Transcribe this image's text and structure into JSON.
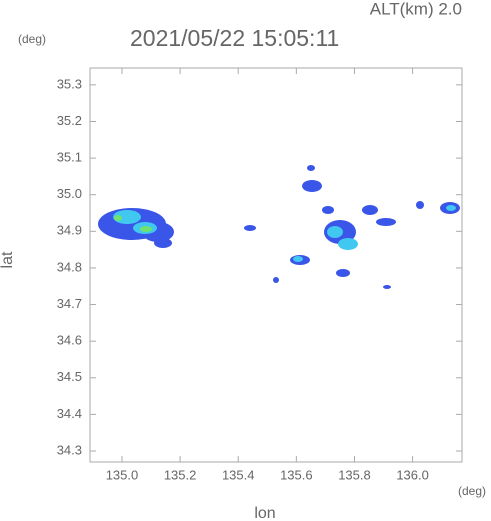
{
  "chart_data": {
    "type": "map",
    "title": "2021/05/22 15:05:11",
    "subtitle": "ALT(km) 2.0",
    "xlabel": "lon",
    "ylabel": "lat",
    "xunit": "(deg)",
    "yunit": "(deg)",
    "xlim": [
      134.89,
      136.17
    ],
    "ylim": [
      34.27,
      35.346
    ],
    "xticks": [
      {
        "value": 135.0,
        "label": "135.0"
      },
      135.2,
      135.4,
      135.6,
      135.8,
      {
        "value": 136.0,
        "label": "136.0"
      }
    ],
    "yticks": [
      34.3,
      34.4,
      34.5,
      34.6,
      34.7,
      34.8,
      34.9,
      {
        "value": 35.0,
        "label": "35.0"
      },
      35.1,
      35.2,
      35.3
    ]
  }
}
